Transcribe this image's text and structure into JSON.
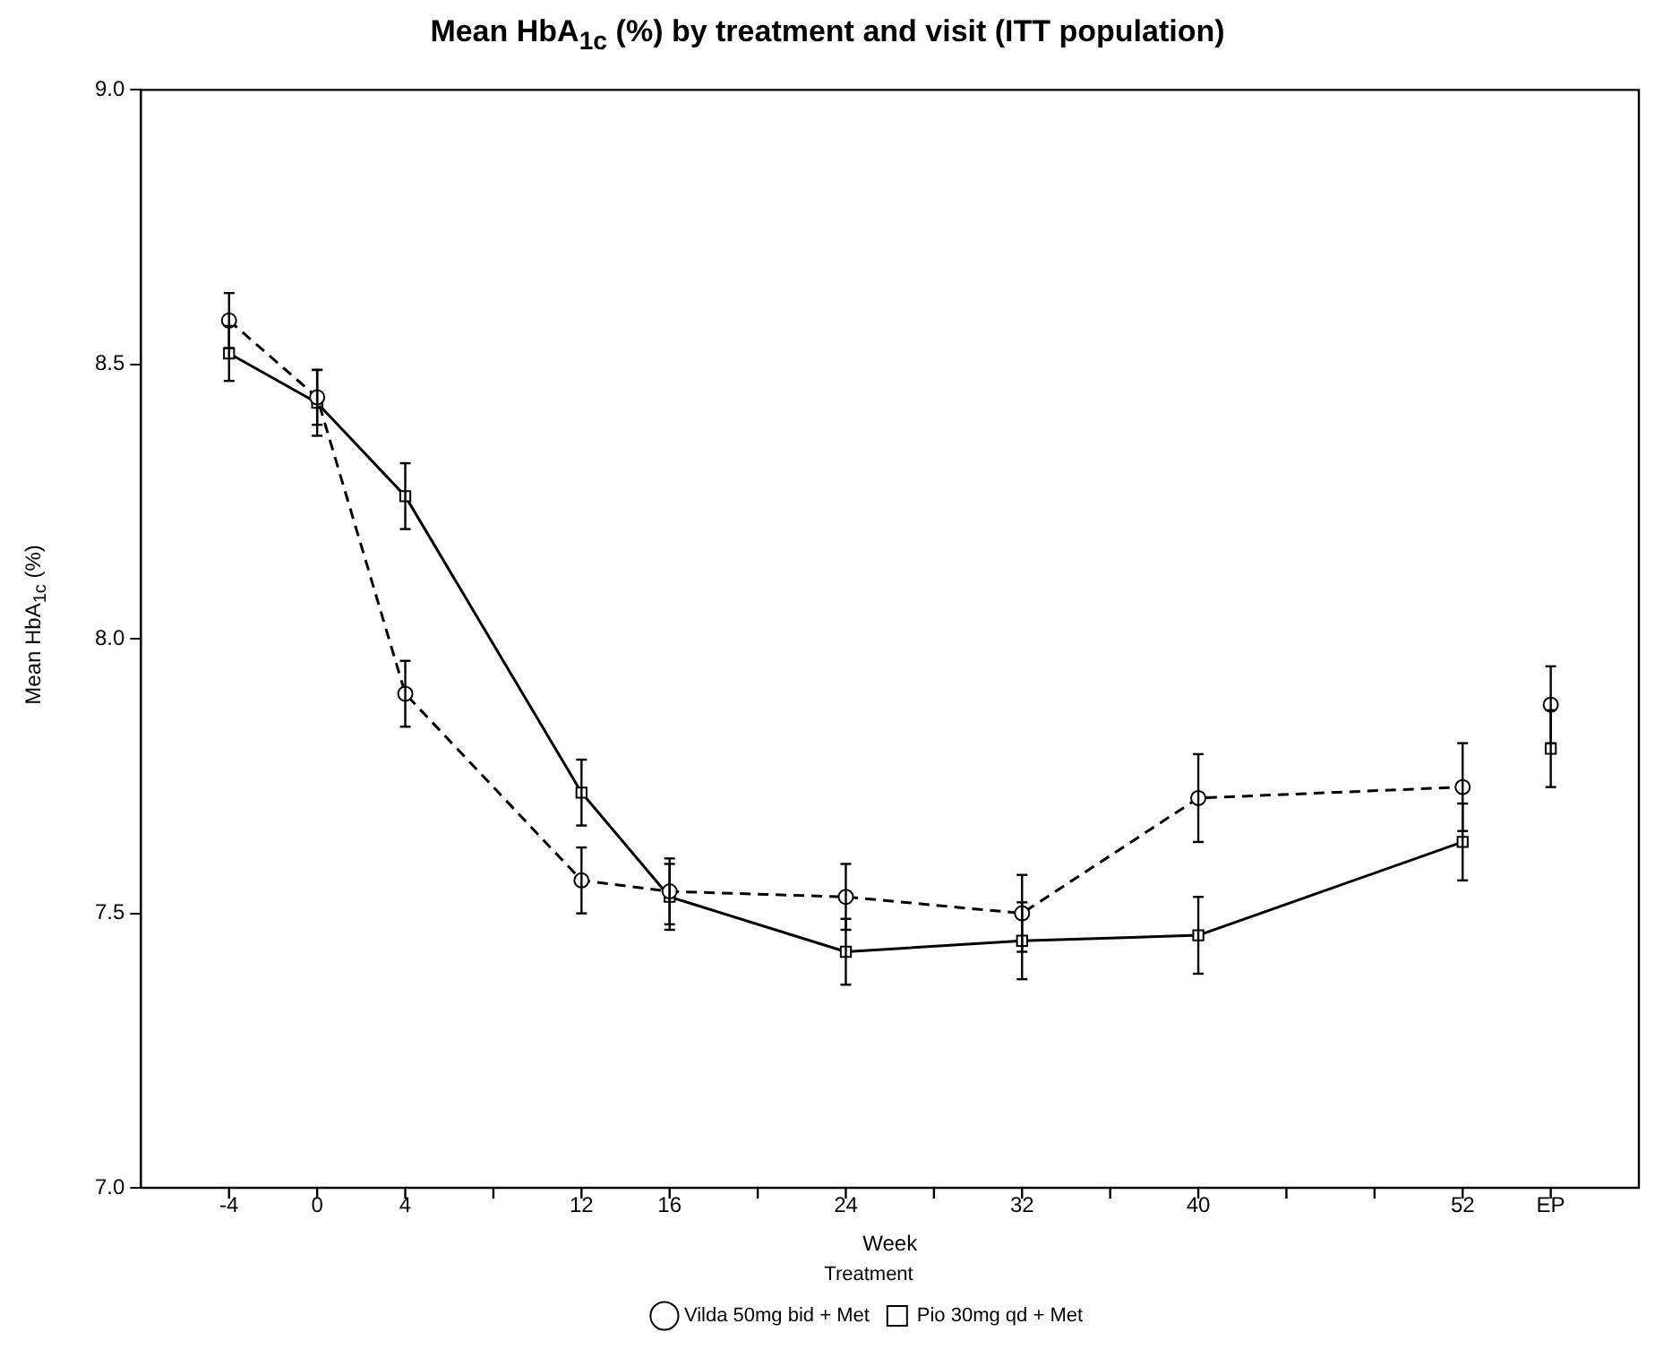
{
  "chart_data": {
    "type": "line",
    "title": "Mean HbA$_{1c}$ (%) by treatment and visit (ITT population)",
    "xlabel": "Week",
    "ylabel": "Mean HbA$_{1c}$ (%)",
    "legend_title": "Treatment",
    "legend": "bottom",
    "grid": false,
    "x": [
      -4,
      0,
      4,
      12,
      16,
      24,
      32,
      40,
      52,
      54,
      56
    ],
    "xlim": [
      -8,
      60
    ],
    "xticks": [
      -4,
      0,
      4,
      {
        "value": 8,
        "label": null
      },
      12,
      16,
      {
        "value": 20,
        "label": null
      },
      24,
      {
        "value": 28,
        "label": null
      },
      32,
      {
        "value": 36,
        "label": null
      },
      40,
      {
        "value": 44,
        "label": null
      },
      {
        "value": 48,
        "label": null
      },
      52,
      {
        "value": 56,
        "label": "EP"
      }
    ],
    "ylim": [
      7.0,
      9.0
    ],
    "yticks": [
      {
        "value": 7,
        "label": "7.0"
      },
      7.5,
      {
        "value": 8,
        "label": "8.0"
      },
      8.5,
      {
        "value": 9,
        "label": "9.0"
      }
    ],
    "series": [
      {
        "name": "Vilda 50mg bid + Met",
        "color": "#000000",
        "marker": "circle",
        "line_style": "dashed",
        "values": [
          8.58,
          8.44,
          7.9,
          7.56,
          7.54,
          7.53,
          7.5,
          7.71,
          7.73,
          null,
          7.88
        ],
        "errors": [
          0.05,
          0.05,
          0.06,
          0.06,
          0.06,
          0.06,
          0.07,
          0.08,
          0.08,
          null,
          0.07
        ]
      },
      {
        "name": "Pio 30mg qd + Met",
        "color": "#000000",
        "marker": "square",
        "line_style": "solid",
        "values": [
          8.52,
          8.43,
          8.26,
          7.72,
          7.53,
          7.43,
          7.45,
          7.46,
          7.63,
          null,
          7.8
        ],
        "errors": [
          0.05,
          0.06,
          0.06,
          0.06,
          0.06,
          0.06,
          0.07,
          0.07,
          0.07,
          null,
          0.07
        ]
      }
    ]
  }
}
